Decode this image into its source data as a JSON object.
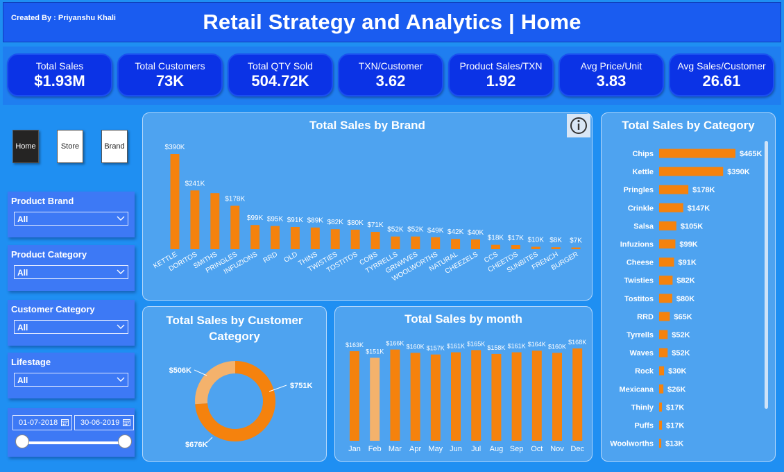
{
  "header": {
    "created_by": "Created By : Priyanshu Khali",
    "title": "Retail Strategy and Analytics | Home"
  },
  "kpis": [
    {
      "label": "Total Sales",
      "value": "$1.93M"
    },
    {
      "label": "Total Customers",
      "value": "73K"
    },
    {
      "label": "Total QTY Sold",
      "value": "504.72K"
    },
    {
      "label": "TXN/Customer",
      "value": "3.62"
    },
    {
      "label": "Product Sales/TXN",
      "value": "1.92"
    },
    {
      "label": "Avg Price/Unit",
      "value": "3.83"
    },
    {
      "label": "Avg Sales/Customer",
      "value": "26.61"
    }
  ],
  "nav": {
    "home": "Home",
    "store": "Store",
    "brand": "Brand",
    "active": "home"
  },
  "slicers": [
    {
      "label": "Product Brand",
      "value": "All"
    },
    {
      "label": "Product Category",
      "value": "All"
    },
    {
      "label": "Customer Category",
      "value": "All"
    },
    {
      "label": "Lifestage",
      "value": "All"
    }
  ],
  "date_range": {
    "start": "01-07-2018",
    "end": "30-06-2019"
  },
  "colors": {
    "bar": "#f5820d",
    "bar_light": "#f4b26c",
    "panel": "#4ea3f0",
    "kpi": "#0b33e6"
  },
  "icons": {
    "info": "info-icon",
    "dropdown": "chevron-down-icon",
    "calendar": "calendar-icon"
  },
  "chart_data": [
    {
      "id": "brand",
      "type": "bar",
      "title": "Total Sales by Brand",
      "categories": [
        "KETTLE",
        "DORITOS",
        "SMITHS",
        "PRINGLES",
        "INFUZIONS",
        "RRD",
        "OLD",
        "THINS",
        "TWISTIES",
        "TOSTITOS",
        "COBS",
        "TYRRELLS",
        "GRNWVES",
        "WOOLWORTHS",
        "NATURAL",
        "CHEEZELS",
        "CCS",
        "CHEETOS",
        "SUNBITES",
        "FRENCH",
        "BURGER"
      ],
      "values": [
        390,
        241,
        230,
        178,
        99,
        95,
        91,
        89,
        82,
        80,
        71,
        52,
        52,
        49,
        42,
        40,
        18,
        17,
        10,
        8,
        7
      ],
      "data_labels": [
        "$390K",
        "$241K",
        "",
        "$178K",
        "$99K",
        "$95K",
        "$91K",
        "$89K",
        "$82K",
        "$80K",
        "$71K",
        "$52K",
        "$52K",
        "$49K",
        "$42K",
        "$40K",
        "$18K",
        "$17K",
        "$10K",
        "$8K",
        "$7K"
      ],
      "unit": "K"
    },
    {
      "id": "customer_category",
      "type": "pie",
      "title": "Total Sales by Customer Category",
      "values": [
        751,
        676,
        506
      ],
      "data_labels": [
        "$751K",
        "$676K",
        "$506K"
      ],
      "colors": [
        "#f5820d",
        "#f5820d",
        "#f4b26c"
      ]
    },
    {
      "id": "month",
      "type": "bar",
      "title": "Total Sales by month",
      "categories": [
        "Jan",
        "Feb",
        "Mar",
        "Apr",
        "May",
        "Jun",
        "Jul",
        "Aug",
        "Sep",
        "Oct",
        "Nov",
        "Dec"
      ],
      "values": [
        163,
        151,
        166,
        160,
        157,
        161,
        165,
        158,
        161,
        164,
        160,
        168
      ],
      "data_labels": [
        "$163K",
        "$151K",
        "$166K",
        "$160K",
        "$157K",
        "$161K",
        "$165K",
        "$158K",
        "$161K",
        "$164K",
        "$160K",
        "$168K"
      ],
      "highlight_index": 1
    },
    {
      "id": "category",
      "type": "bar",
      "orientation": "horizontal",
      "title": "Total Sales by Category",
      "categories": [
        "Chips",
        "Kettle",
        "Pringles",
        "Crinkle",
        "Salsa",
        "Infuzions",
        "Cheese",
        "Twisties",
        "Tostitos",
        "RRD",
        "Tyrrells",
        "Waves",
        "Rock",
        "Mexicana",
        "Thinly",
        "Puffs",
        "Woolworths"
      ],
      "values": [
        465,
        390,
        178,
        147,
        105,
        99,
        91,
        82,
        80,
        65,
        52,
        52,
        30,
        26,
        17,
        17,
        13
      ],
      "data_labels": [
        "$465K",
        "$390K",
        "$178K",
        "$147K",
        "$105K",
        "$99K",
        "$91K",
        "$82K",
        "$80K",
        "$65K",
        "$52K",
        "$52K",
        "$30K",
        "$26K",
        "$17K",
        "$17K",
        "$13K"
      ]
    }
  ]
}
